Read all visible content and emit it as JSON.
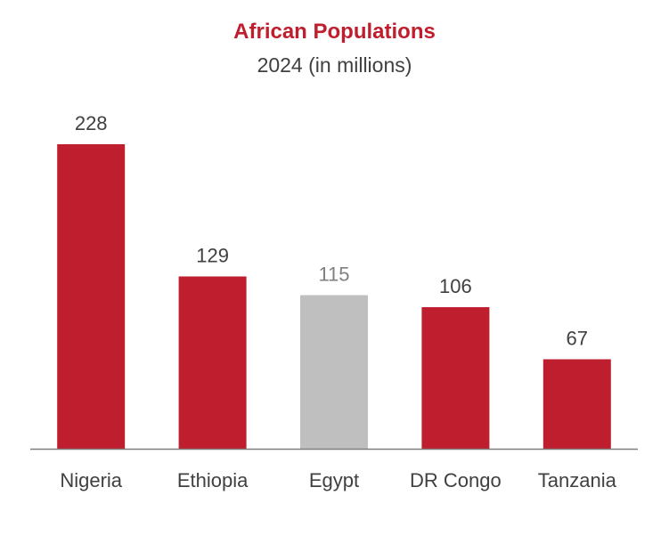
{
  "colors": {
    "accent": "#BE1E2D",
    "highlight_bar": "#BFBFBF",
    "highlight_label": "#808080",
    "label_text": "#404040",
    "axis_line": "#7F7F7F"
  },
  "chart_data": {
    "type": "bar",
    "title": "African Populations",
    "subtitle": "2024 (in millions)",
    "categories": [
      "Nigeria",
      "Ethiopia",
      "Egypt",
      "DR Congo",
      "Tanzania"
    ],
    "values": [
      228,
      129,
      115,
      106,
      67
    ],
    "highlighted_category": "Egypt",
    "xlabel": "",
    "ylabel": "",
    "ylim": [
      0,
      228
    ],
    "grid": false,
    "legend": "none",
    "data_labels": true
  }
}
